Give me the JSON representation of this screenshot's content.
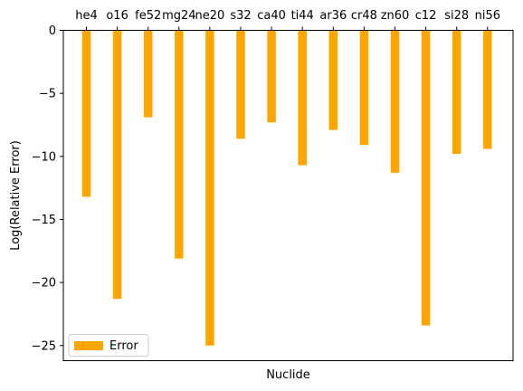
{
  "chart_data": {
    "type": "bar",
    "categories": [
      "he4",
      "o16",
      "fe52",
      "mg24",
      "ne20",
      "s32",
      "ca40",
      "ti44",
      "ar36",
      "cr48",
      "zn60",
      "c12",
      "si28",
      "ni56"
    ],
    "series": [
      {
        "name": "Error",
        "color": "#ffa500",
        "values": [
          -13.2,
          -21.3,
          -6.9,
          -18.1,
          -25.0,
          -8.6,
          -7.3,
          -10.7,
          -7.9,
          -9.1,
          -11.3,
          -23.4,
          -9.8,
          -9.4
        ]
      }
    ],
    "title": "",
    "xlabel": "Nuclide",
    "ylabel": "Log(Relative Error)",
    "ylim": [
      -26.2,
      0
    ],
    "yticks": [
      0,
      -5,
      -10,
      -15,
      -20,
      -25
    ],
    "ytick_labels": [
      "0",
      "−5",
      "−10",
      "−15",
      "−20",
      "−25"
    ],
    "category_axis_position": "top",
    "grid": false,
    "legend_position": "lower-left"
  }
}
